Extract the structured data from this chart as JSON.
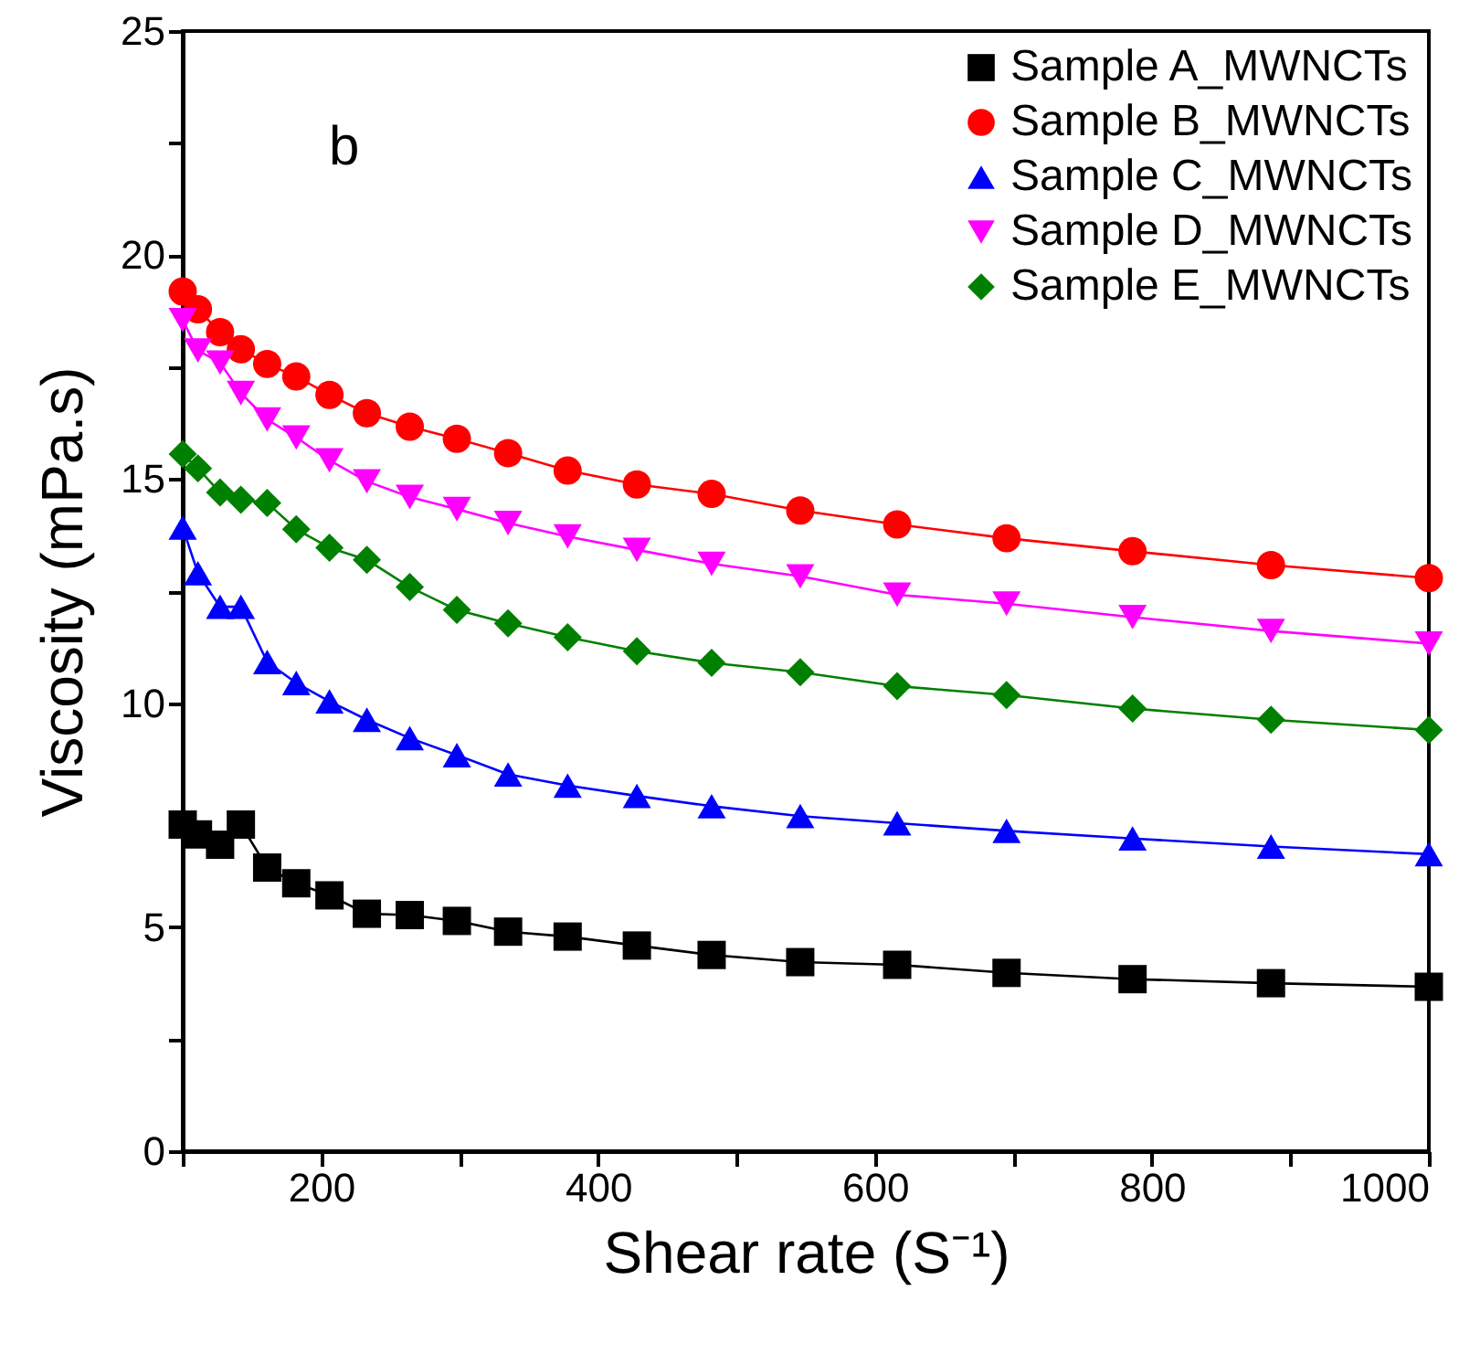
{
  "chart_data": {
    "type": "line",
    "xlabel": "Shear rate (S⁻¹)",
    "ylabel": "Viscosity (mPa.s)",
    "annotations": [
      "b"
    ],
    "x": [
      100,
      111,
      127,
      142,
      161,
      182,
      206,
      233,
      264,
      298,
      335,
      378,
      428,
      482,
      546,
      616,
      695,
      786,
      886,
      1000
    ],
    "series": [
      {
        "name": "Sample A_MWNCTs",
        "color": "#000000",
        "marker": "square",
        "values": [
          7.29,
          7.07,
          6.84,
          7.29,
          6.33,
          5.98,
          5.71,
          5.3,
          5.27,
          5.14,
          4.9,
          4.79,
          4.59,
          4.38,
          4.22,
          4.16,
          3.98,
          3.84,
          3.75,
          3.67
        ]
      },
      {
        "name": "Sample B_MWNCTs",
        "color": "#ff0000",
        "marker": "circle",
        "values": [
          19.19,
          18.79,
          18.28,
          17.9,
          17.57,
          17.29,
          16.88,
          16.47,
          16.17,
          15.9,
          15.58,
          15.19,
          14.88,
          14.67,
          14.3,
          13.99,
          13.68,
          13.39,
          13.08,
          12.79
        ]
      },
      {
        "name": "Sample C_MWNCTs",
        "color": "#0000ff",
        "marker": "triangle",
        "values": [
          13.92,
          12.9,
          12.15,
          12.15,
          10.92,
          10.45,
          10.04,
          9.63,
          9.22,
          8.84,
          8.41,
          8.16,
          7.93,
          7.7,
          7.48,
          7.32,
          7.15,
          6.98,
          6.8,
          6.63
        ]
      },
      {
        "name": "Sample D_MWNCTs",
        "color": "#ff00ff",
        "marker": "triangle-down",
        "values": [
          18.55,
          17.87,
          17.6,
          16.92,
          16.33,
          15.93,
          15.42,
          14.95,
          14.6,
          14.33,
          14.02,
          13.72,
          13.42,
          13.11,
          12.83,
          12.42,
          12.22,
          11.92,
          11.61,
          11.33
        ]
      },
      {
        "name": "Sample E_MWNCTs",
        "color": "#008000",
        "marker": "diamond",
        "values": [
          15.56,
          15.24,
          14.7,
          14.54,
          14.47,
          13.88,
          13.47,
          13.2,
          12.59,
          12.08,
          11.78,
          11.47,
          11.16,
          10.9,
          10.69,
          10.38,
          10.18,
          9.88,
          9.63,
          9.4
        ]
      }
    ],
    "xlim": [
      100,
      1000
    ],
    "xticks": [
      {
        "value": 100,
        "label": null
      },
      200,
      {
        "value": 300,
        "label": null
      },
      400,
      {
        "value": 500,
        "label": null
      },
      600,
      {
        "value": 700,
        "label": null
      },
      800,
      {
        "value": 900,
        "label": null
      },
      1000
    ],
    "ylim": [
      0,
      25
    ],
    "yticks": [
      0,
      {
        "value": 2.5,
        "label": null
      },
      5,
      {
        "value": 7.5,
        "label": null
      },
      10,
      {
        "value": 12.5,
        "label": null
      },
      15,
      {
        "value": 17.5,
        "label": null
      },
      20,
      {
        "value": 22.5,
        "label": null
      },
      25
    ],
    "legend": "top right",
    "grid": false
  }
}
